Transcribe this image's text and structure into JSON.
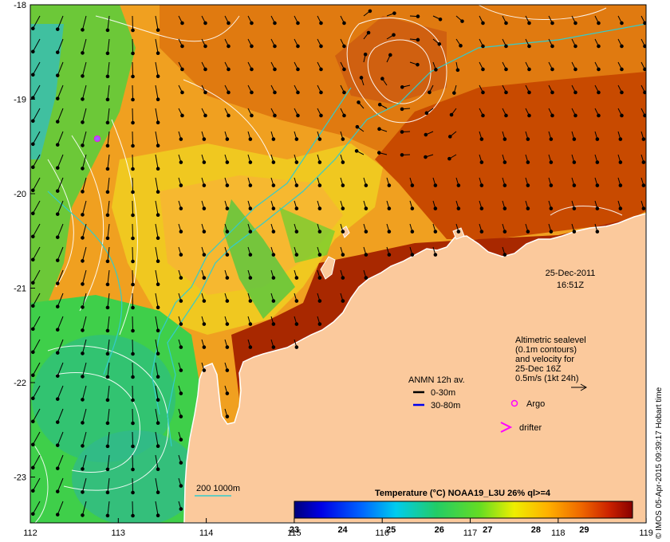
{
  "map": {
    "lat_ticks": [
      "-18",
      "-19",
      "-20",
      "-21",
      "-22",
      "-23"
    ],
    "lon_ticks": [
      "112",
      "113",
      "114",
      "115",
      "116",
      "117",
      "118",
      "119"
    ],
    "timestamp": {
      "date": "25-Dec-2011",
      "time": "16:51Z"
    },
    "sealevel_note": [
      "Altimetric sealevel",
      "(0.1m contours)",
      "and velocity for",
      "25-Dec 16Z",
      "0.5m/s (1kt 24h)"
    ],
    "anmn": {
      "title": "ANMN 12h av.",
      "items": [
        "0-30m",
        "30-80m"
      ],
      "colors": [
        "#000000",
        "#0000ee"
      ]
    },
    "markers": {
      "argo": "Argo",
      "drifter": "drifter",
      "color": "#ff00ff"
    },
    "isobath_label": "200 1000m",
    "isobath_color": "#33cccc",
    "colorbar": {
      "title": "Temperature (°C) NOAA19_L3U 26% ql>=4",
      "ticks": [
        "23",
        "24",
        "25",
        "26",
        "27",
        "28",
        "29"
      ],
      "range": [
        23,
        30
      ]
    },
    "credit": "© IMOS 05-Apr-2015 09:39:17 Hobart time",
    "colors": {
      "land": "#fbc99c",
      "ocean_hot": "#cc3300",
      "ocean_mid": "#f2a01a",
      "ocean_cool": "#3fcf4a"
    }
  }
}
